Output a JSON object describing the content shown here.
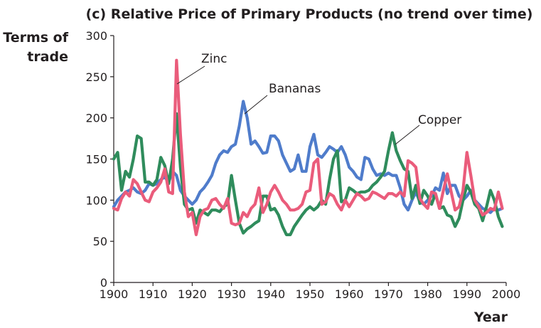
{
  "chart_data": {
    "type": "line",
    "title": "(c) Relative Price of Primary Products (no trend over time)",
    "ylabel_lines": [
      "Terms of",
      "trade"
    ],
    "xlabel": "Year",
    "xlim": [
      1900,
      2000
    ],
    "ylim": [
      0,
      300
    ],
    "x_ticks": [
      1900,
      1910,
      1920,
      1930,
      1940,
      1950,
      1960,
      1970,
      1980,
      1990,
      2000
    ],
    "y_ticks": [
      0,
      50,
      100,
      150,
      200,
      250,
      300
    ],
    "grid": false,
    "colors": {
      "Bananas": "#4f7ccb",
      "Copper": "#2f8c5c",
      "Zinc": "#ea5c7b"
    },
    "series": [
      {
        "name": "Bananas",
        "x": [
          1900,
          1901,
          1902,
          1903,
          1904,
          1905,
          1906,
          1907,
          1908,
          1909,
          1910,
          1911,
          1912,
          1913,
          1914,
          1915,
          1916,
          1917,
          1918,
          1919,
          1920,
          1921,
          1922,
          1923,
          1924,
          1925,
          1926,
          1927,
          1928,
          1929,
          1930,
          1931,
          1932,
          1933,
          1934,
          1935,
          1936,
          1937,
          1938,
          1939,
          1940,
          1941,
          1942,
          1943,
          1944,
          1945,
          1946,
          1947,
          1948,
          1949,
          1950,
          1951,
          1952,
          1953,
          1954,
          1955,
          1956,
          1957,
          1958,
          1959,
          1960,
          1961,
          1962,
          1963,
          1964,
          1965,
          1966,
          1967,
          1968,
          1969,
          1970,
          1971,
          1972,
          1973,
          1974,
          1975,
          1976,
          1977,
          1978,
          1979,
          1980,
          1981,
          1982,
          1983,
          1984,
          1985,
          1986,
          1987,
          1988,
          1989,
          1990,
          1991,
          1992,
          1993,
          1994,
          1995,
          1996,
          1997,
          1998,
          1999
        ],
        "values": [
          92,
          100,
          105,
          110,
          112,
          115,
          110,
          108,
          112,
          120,
          118,
          120,
          125,
          128,
          122,
          135,
          130,
          112,
          105,
          100,
          95,
          100,
          110,
          115,
          122,
          130,
          145,
          155,
          160,
          158,
          165,
          168,
          190,
          220,
          200,
          168,
          172,
          165,
          157,
          158,
          178,
          178,
          172,
          155,
          145,
          135,
          138,
          155,
          135,
          135,
          165,
          180,
          155,
          152,
          158,
          165,
          162,
          158,
          165,
          155,
          140,
          135,
          128,
          125,
          152,
          150,
          138,
          130,
          132,
          130,
          133,
          130,
          130,
          115,
          95,
          88,
          100,
          110,
          98,
          95,
          100,
          105,
          115,
          112,
          133,
          108,
          118,
          118,
          105,
          100,
          105,
          112,
          100,
          95,
          90,
          88,
          85,
          90,
          88,
          90
        ]
      },
      {
        "name": "Copper",
        "x": [
          1900,
          1901,
          1902,
          1903,
          1904,
          1905,
          1906,
          1907,
          1908,
          1909,
          1910,
          1911,
          1912,
          1913,
          1914,
          1915,
          1916,
          1917,
          1918,
          1919,
          1920,
          1921,
          1922,
          1923,
          1924,
          1925,
          1926,
          1927,
          1928,
          1929,
          1930,
          1931,
          1932,
          1933,
          1934,
          1935,
          1936,
          1937,
          1938,
          1939,
          1940,
          1941,
          1942,
          1943,
          1944,
          1945,
          1946,
          1947,
          1948,
          1949,
          1950,
          1951,
          1952,
          1953,
          1954,
          1955,
          1956,
          1957,
          1958,
          1959,
          1960,
          1961,
          1962,
          1963,
          1964,
          1965,
          1966,
          1967,
          1968,
          1969,
          1970,
          1971,
          1972,
          1973,
          1974,
          1975,
          1976,
          1977,
          1978,
          1979,
          1980,
          1981,
          1982,
          1983,
          1984,
          1985,
          1986,
          1987,
          1988,
          1989,
          1990,
          1991,
          1992,
          1993,
          1994,
          1995,
          1996,
          1997,
          1998,
          1999
        ],
        "values": [
          150,
          158,
          112,
          135,
          128,
          150,
          178,
          175,
          122,
          122,
          118,
          125,
          152,
          142,
          120,
          150,
          205,
          140,
          95,
          88,
          90,
          72,
          88,
          85,
          82,
          88,
          88,
          86,
          92,
          95,
          130,
          100,
          72,
          60,
          65,
          68,
          72,
          75,
          105,
          105,
          88,
          90,
          82,
          68,
          58,
          58,
          68,
          75,
          82,
          88,
          92,
          88,
          92,
          100,
          95,
          125,
          150,
          160,
          98,
          100,
          115,
          112,
          108,
          110,
          110,
          112,
          118,
          122,
          128,
          135,
          160,
          182,
          160,
          148,
          138,
          135,
          102,
          118,
          96,
          112,
          105,
          95,
          108,
          90,
          92,
          82,
          80,
          68,
          78,
          100,
          118,
          110,
          95,
          90,
          75,
          92,
          112,
          100,
          80,
          68
        ]
      },
      {
        "name": "Zinc",
        "x": [
          1900,
          1901,
          1902,
          1903,
          1904,
          1905,
          1906,
          1907,
          1908,
          1909,
          1910,
          1911,
          1912,
          1913,
          1914,
          1915,
          1916,
          1917,
          1918,
          1919,
          1920,
          1921,
          1922,
          1923,
          1924,
          1925,
          1926,
          1927,
          1928,
          1929,
          1930,
          1931,
          1932,
          1933,
          1934,
          1935,
          1936,
          1937,
          1938,
          1939,
          1940,
          1941,
          1942,
          1943,
          1944,
          1945,
          1946,
          1947,
          1948,
          1949,
          1950,
          1951,
          1952,
          1953,
          1954,
          1955,
          1956,
          1957,
          1958,
          1959,
          1960,
          1961,
          1962,
          1963,
          1964,
          1965,
          1966,
          1967,
          1968,
          1969,
          1970,
          1971,
          1972,
          1973,
          1974,
          1975,
          1976,
          1977,
          1978,
          1979,
          1980,
          1981,
          1982,
          1983,
          1984,
          1985,
          1986,
          1987,
          1988,
          1989,
          1990,
          1991,
          1992,
          1993,
          1994,
          1995,
          1996,
          1997,
          1998,
          1999
        ],
        "values": [
          90,
          88,
          102,
          110,
          105,
          125,
          120,
          110,
          100,
          98,
          110,
          115,
          122,
          138,
          110,
          108,
          270,
          180,
          110,
          80,
          85,
          58,
          80,
          88,
          90,
          100,
          102,
          95,
          90,
          102,
          72,
          70,
          72,
          85,
          80,
          90,
          95,
          115,
          85,
          95,
          110,
          118,
          110,
          100,
          95,
          88,
          88,
          90,
          95,
          110,
          112,
          145,
          150,
          95,
          98,
          108,
          105,
          95,
          88,
          100,
          92,
          100,
          108,
          105,
          100,
          102,
          110,
          108,
          105,
          102,
          108,
          108,
          105,
          110,
          105,
          148,
          145,
          140,
          102,
          95,
          90,
          110,
          108,
          90,
          112,
          132,
          110,
          88,
          92,
          112,
          158,
          130,
          100,
          92,
          82,
          85,
          90,
          88,
          110,
          90
        ]
      }
    ],
    "annotations": [
      {
        "series": "Zinc",
        "text": "Zinc"
      },
      {
        "series": "Bananas",
        "text": "Bananas"
      },
      {
        "series": "Copper",
        "text": "Copper"
      }
    ]
  }
}
